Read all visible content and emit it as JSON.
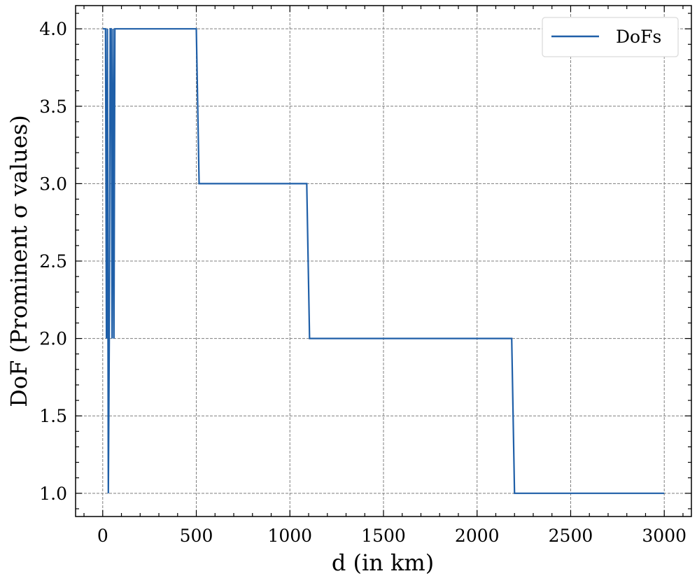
{
  "chart_data": {
    "type": "line",
    "xlabel": "d (in km)",
    "ylabel": "DoF (Prominent σ values)",
    "xlim": [
      -145,
      3145
    ],
    "ylim": [
      0.85,
      4.15
    ],
    "grid": true,
    "legend_position": "top-right",
    "x_ticks": [
      0,
      500,
      1000,
      1500,
      2000,
      2500,
      3000
    ],
    "x_tick_labels": [
      "0",
      "500",
      "1000",
      "1500",
      "2000",
      "2500",
      "3000"
    ],
    "y_ticks": [
      1.0,
      1.5,
      2.0,
      2.5,
      3.0,
      3.5,
      4.0
    ],
    "y_tick_labels": [
      "1.0",
      "1.5",
      "2.0",
      "2.5",
      "3.0",
      "3.5",
      "4.0"
    ],
    "series": [
      {
        "name": "DoFs",
        "color": "#1f5fa8",
        "x": [
          0,
          15,
          20,
          25,
          30,
          35,
          40,
          45,
          50,
          55,
          60,
          65,
          70,
          500,
          515,
          1090,
          1105,
          2185,
          2200,
          3000
        ],
        "y": [
          4,
          4,
          2,
          4,
          1,
          2,
          4,
          4,
          2,
          4,
          2,
          4,
          4,
          4,
          3,
          3,
          2,
          2,
          1,
          1
        ]
      }
    ]
  }
}
